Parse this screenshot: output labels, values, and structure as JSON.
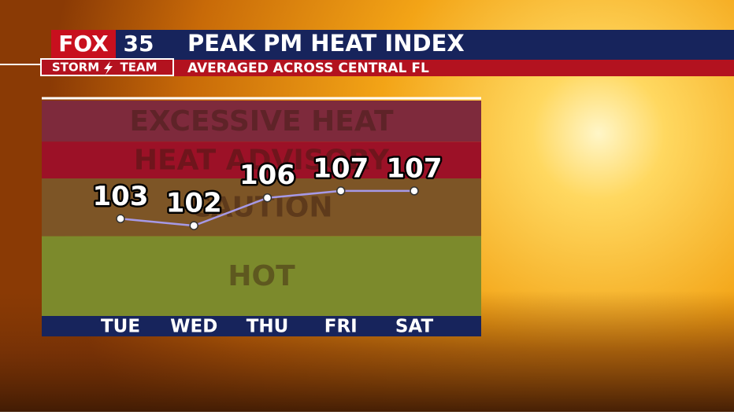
{
  "logo": {
    "fox": "FOX",
    "number": "35",
    "team_left": "STORM",
    "team_right": "TEAM"
  },
  "chart_data": {
    "type": "line",
    "title": "PEAK PM HEAT INDEX",
    "subtitle": "AVERAGED ACROSS CENTRAL FL",
    "categories": [
      "TUE",
      "WED",
      "THU",
      "FRI",
      "SAT"
    ],
    "series": [
      {
        "color": "#a699e6",
        "values": [
          103,
          102,
          106,
          107,
          107
        ]
      }
    ],
    "ylim": [
      89,
      120
    ],
    "bands": [
      {
        "label": "HOT",
        "from": 89,
        "to": 100.5,
        "color": "#7c8a2c"
      },
      {
        "label": "CAUTION",
        "from": 100.5,
        "to": 108.8,
        "color": "#7d5526"
      },
      {
        "label": "HEAT ADVISORY",
        "from": 108.8,
        "to": 114.1,
        "color": "#9c1127"
      },
      {
        "label": "EXCESSIVE HEAT",
        "from": 114.1,
        "to": 120,
        "color": "#7e2a3c"
      }
    ]
  }
}
